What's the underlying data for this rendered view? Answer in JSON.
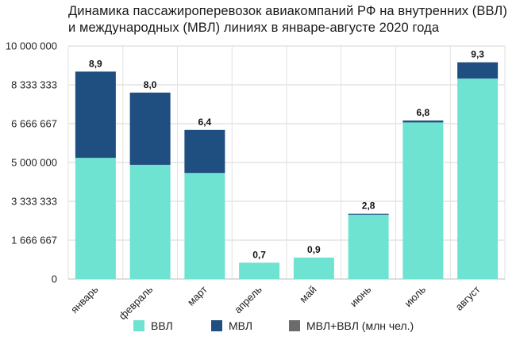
{
  "chart_data": {
    "type": "bar",
    "stacked": true,
    "title": "Динамика пассажироперевозок авиакомпаний РФ на внутренних (ВВЛ) и международных (МВЛ) линиях в январе-августе 2020 года",
    "categories": [
      "январь",
      "февраль",
      "март",
      "апрель",
      "май",
      "июнь",
      "июль",
      "август"
    ],
    "series": [
      {
        "name": "ВВЛ",
        "color": "#6ee3d1",
        "values": [
          5200000,
          4900000,
          4550000,
          700000,
          920000,
          2760000,
          6720000,
          8600000
        ]
      },
      {
        "name": "МВЛ",
        "color": "#1f4e80",
        "values": [
          3700000,
          3100000,
          1850000,
          0,
          0,
          40000,
          80000,
          700000
        ]
      }
    ],
    "total_label": {
      "name": "МВЛ+ВВЛ (млн чел.)",
      "color": "#6b6b6b"
    },
    "data_labels": [
      "8,9",
      "8,0",
      "6,4",
      "0,7",
      "0,9",
      "2,8",
      "6,8",
      "9,3"
    ],
    "ylim": [
      0,
      10000000
    ],
    "yticks": [
      0,
      1666667,
      3333333,
      5000000,
      6666667,
      8333333,
      10000000
    ],
    "ytick_labels": [
      "0",
      "1 666 667",
      "3 333 333",
      "5 000 000",
      "6 666 667",
      "8 333 333",
      "10 000 000"
    ],
    "grid": true,
    "legend_position": "bottom"
  }
}
